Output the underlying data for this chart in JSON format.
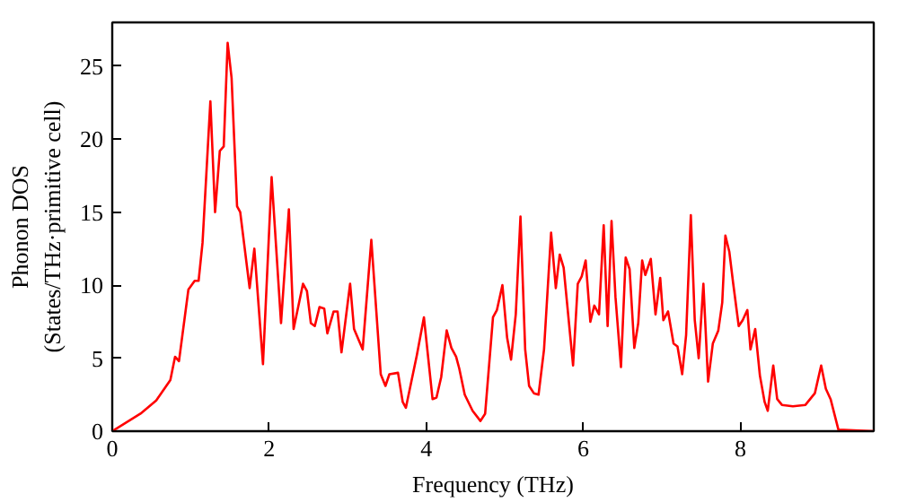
{
  "chart_data": {
    "type": "line",
    "xlabel": "Frequency (THz)",
    "ylabel": "Phonon DOS\n(States/THz·primitive cell)",
    "xlim": [
      0,
      9.7
    ],
    "ylim": [
      0,
      28
    ],
    "xticks": [
      0,
      2,
      4,
      6,
      8
    ],
    "yticks": [
      0,
      5,
      10,
      15,
      20,
      25
    ],
    "grid": false,
    "series": [
      {
        "color": "#ff0000",
        "x": [
          0,
          0.36,
          0.56,
          0.74,
          0.8,
          0.85,
          0.97,
          1.05,
          1.1,
          1.15,
          1.25,
          1.31,
          1.37,
          1.42,
          1.47,
          1.52,
          1.59,
          1.63,
          1.75,
          1.81,
          1.92,
          2.03,
          2.15,
          2.25,
          2.31,
          2.43,
          2.48,
          2.53,
          2.58,
          2.64,
          2.7,
          2.74,
          2.82,
          2.87,
          2.92,
          3.03,
          3.08,
          3.19,
          3.3,
          3.42,
          3.48,
          3.53,
          3.64,
          3.7,
          3.74,
          3.88,
          3.97,
          4.08,
          4.13,
          4.19,
          4.26,
          4.32,
          4.38,
          4.42,
          4.49,
          4.59,
          4.69,
          4.75,
          4.85,
          4.9,
          4.97,
          5.03,
          5.08,
          5.14,
          5.2,
          5.26,
          5.31,
          5.37,
          5.43,
          5.5,
          5.59,
          5.65,
          5.7,
          5.75,
          5.87,
          5.93,
          5.98,
          6.03,
          6.09,
          6.14,
          6.2,
          6.26,
          6.31,
          6.36,
          6.41,
          6.48,
          6.54,
          6.59,
          6.65,
          6.7,
          6.75,
          6.79,
          6.86,
          6.92,
          6.98,
          7.02,
          7.08,
          7.15,
          7.2,
          7.26,
          7.31,
          7.37,
          7.42,
          7.47,
          7.53,
          7.59,
          7.65,
          7.72,
          7.77,
          7.81,
          7.86,
          7.91,
          7.98,
          8.03,
          8.09,
          8.13,
          8.19,
          8.25,
          8.31,
          8.35,
          8.42,
          8.47,
          8.53,
          8.67,
          8.83,
          8.95,
          9.03,
          9.09,
          9.15,
          9.25,
          9.7
        ],
        "values": [
          0,
          1.2,
          2.1,
          3.5,
          5.1,
          4.8,
          9.7,
          10.3,
          10.3,
          12.9,
          22.6,
          15.0,
          19.2,
          19.5,
          26.6,
          24.2,
          15.4,
          15.0,
          9.8,
          12.5,
          4.6,
          17.4,
          7.4,
          15.2,
          7.0,
          10.1,
          9.6,
          7.4,
          7.2,
          8.5,
          8.4,
          6.7,
          8.2,
          8.2,
          5.4,
          10.1,
          7.0,
          5.6,
          13.1,
          3.9,
          3.1,
          3.9,
          4.0,
          2.0,
          1.6,
          5.2,
          7.8,
          2.2,
          2.3,
          3.7,
          6.9,
          5.7,
          5.1,
          4.3,
          2.5,
          1.4,
          0.7,
          1.2,
          7.8,
          8.3,
          10.0,
          6.4,
          4.9,
          8.0,
          14.7,
          5.6,
          3.1,
          2.6,
          2.5,
          5.6,
          13.6,
          9.8,
          12.1,
          11.2,
          4.5,
          10.1,
          10.6,
          11.7,
          7.5,
          8.6,
          8.0,
          14.1,
          7.2,
          14.4,
          9.2,
          4.4,
          11.9,
          11.1,
          5.7,
          7.4,
          11.7,
          10.7,
          11.8,
          8.0,
          10.5,
          7.6,
          8.2,
          6.0,
          5.8,
          3.9,
          6.6,
          14.8,
          7.6,
          5.0,
          10.1,
          3.4,
          6.0,
          6.9,
          8.8,
          13.4,
          12.3,
          10.1,
          7.2,
          7.6,
          8.3,
          5.6,
          7.0,
          3.8,
          2.0,
          1.4,
          4.5,
          2.2,
          1.8,
          1.7,
          1.8,
          2.6,
          4.5,
          2.9,
          2.2,
          0.1,
          0
        ]
      }
    ]
  }
}
